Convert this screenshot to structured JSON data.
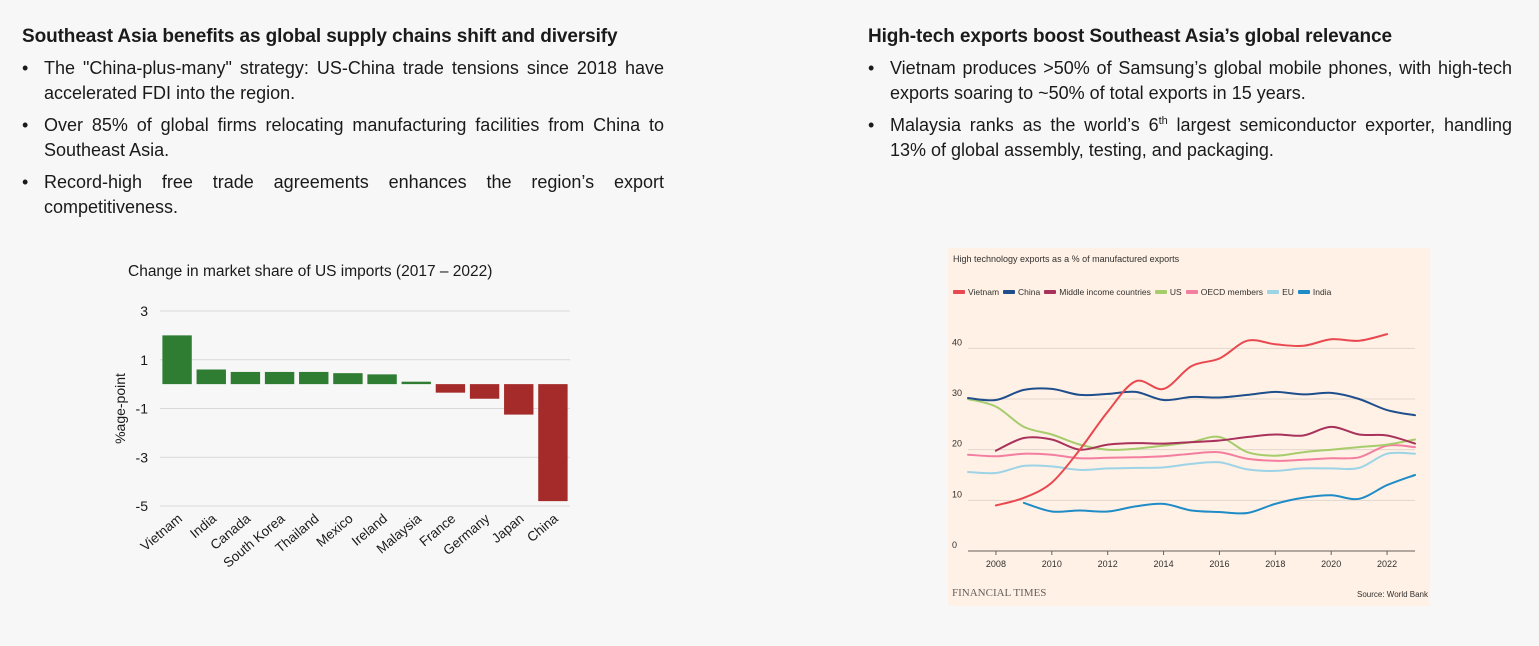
{
  "left": {
    "heading": "Southeast Asia benefits as global supply chains shift and diversify",
    "bullets": [
      "The \"China-plus-many\" strategy: US-China trade tensions since 2018 have accelerated FDI into the region.",
      "Over 85% of global firms relocating manufacturing facilities from China to Southeast Asia.",
      "Record-high free trade agreements enhances the region’s export competitiveness."
    ]
  },
  "right": {
    "heading": "High-tech exports boost Southeast Asia’s global relevance",
    "bullet1": "Vietnam produces >50% of Samsung’s global mobile phones, with high-tech exports soaring to ~50% of total exports in 15 years.",
    "bullet2_pre": "Malaysia ranks as the world’s 6",
    "bullet2_sup": "th",
    "bullet2_post": " largest semiconductor exporter, handling 13% of global assembly, testing, and packaging."
  },
  "bullet_glyph": "•",
  "chart_data": [
    {
      "type": "bar",
      "title": "Change in market share of US imports  (2017 – 2022)",
      "ylabel": "%age-point",
      "categories": [
        "Vietnam",
        "India",
        "Canada",
        "South Korea",
        "Thailand",
        "Mexico",
        "Ireland",
        "Malaysia",
        "France",
        "Germany",
        "Japan",
        "China"
      ],
      "values": [
        2.0,
        0.6,
        0.5,
        0.5,
        0.5,
        0.45,
        0.4,
        0.1,
        -0.35,
        -0.6,
        -1.25,
        -4.8
      ],
      "yticks": [
        3,
        1,
        -1,
        -3,
        -5
      ],
      "ylim": [
        -5,
        3
      ],
      "colors": {
        "positive": "#2e7d32",
        "negative": "#a52a2a"
      },
      "grid": true
    },
    {
      "type": "line",
      "title": "High technology exports as a % of manufactured exports",
      "brand": "FINANCIAL TIMES",
      "source": "Source: World Bank",
      "xticks": [
        2008,
        2010,
        2012,
        2014,
        2016,
        2018,
        2020,
        2022
      ],
      "yticks": [
        0,
        10,
        20,
        30,
        40
      ],
      "xlim": [
        2007,
        2023
      ],
      "ylim": [
        0,
        45
      ],
      "grid": true,
      "series": [
        {
          "name": "Vietnam",
          "color": "#e8484f",
          "x": [
            2008,
            2009,
            2010,
            2011,
            2012,
            2013,
            2014,
            2015,
            2016,
            2017,
            2018,
            2019,
            2020,
            2021,
            2022
          ],
          "y": [
            9,
            10.5,
            13.5,
            20,
            27.5,
            33.5,
            32,
            36.5,
            38,
            41.5,
            40.8,
            40.5,
            41.8,
            41.5,
            42.8
          ]
        },
        {
          "name": "China",
          "color": "#1f4e8c",
          "x": [
            2007,
            2008,
            2009,
            2010,
            2011,
            2012,
            2013,
            2014,
            2015,
            2016,
            2017,
            2018,
            2019,
            2020,
            2021,
            2022,
            2023
          ],
          "y": [
            30.2,
            29.8,
            31.8,
            32,
            30.8,
            31,
            31.4,
            29.8,
            30.4,
            30.3,
            30.8,
            31.4,
            30.9,
            31.2,
            30,
            27.8,
            26.8
          ]
        },
        {
          "name": "Middle income countries",
          "color": "#a8325b",
          "x": [
            2008,
            2009,
            2010,
            2011,
            2012,
            2013,
            2014,
            2015,
            2016,
            2017,
            2018,
            2019,
            2020,
            2021,
            2022,
            2023
          ],
          "y": [
            19.8,
            22.3,
            22,
            20,
            21,
            21.3,
            21.2,
            21.5,
            21.8,
            22.5,
            23,
            22.8,
            24.5,
            23,
            22.8,
            21.2
          ]
        },
        {
          "name": "US",
          "color": "#a6cc6b",
          "x": [
            2007,
            2008,
            2009,
            2010,
            2011,
            2012,
            2013,
            2014,
            2015,
            2016,
            2017,
            2018,
            2019,
            2020,
            2021,
            2022,
            2023
          ],
          "y": [
            30,
            28.5,
            24.5,
            23,
            21,
            20,
            20.2,
            20.8,
            21.5,
            22.5,
            19.5,
            18.8,
            19.5,
            20,
            20.5,
            21,
            22
          ]
        },
        {
          "name": "OECD members",
          "color": "#f47ea0",
          "x": [
            2007,
            2008,
            2009,
            2010,
            2011,
            2012,
            2013,
            2014,
            2015,
            2016,
            2017,
            2018,
            2019,
            2020,
            2021,
            2022,
            2023
          ],
          "y": [
            19,
            18.7,
            19.2,
            19,
            18.3,
            18.4,
            18.5,
            18.7,
            19.2,
            19.5,
            18.2,
            17.8,
            18,
            18.3,
            18.5,
            20.8,
            20.5
          ]
        },
        {
          "name": "EU",
          "color": "#9dd3e6",
          "x": [
            2007,
            2008,
            2009,
            2010,
            2011,
            2012,
            2013,
            2014,
            2015,
            2016,
            2017,
            2018,
            2019,
            2020,
            2021,
            2022,
            2023
          ],
          "y": [
            15.6,
            15.4,
            16.8,
            16.7,
            16,
            16.3,
            16.4,
            16.5,
            17.2,
            17.5,
            16.1,
            15.8,
            16.3,
            16.3,
            16.4,
            19.2,
            19.2
          ]
        },
        {
          "name": "India",
          "color": "#1f8cc7",
          "x": [
            2009,
            2010,
            2011,
            2012,
            2013,
            2014,
            2015,
            2016,
            2017,
            2018,
            2019,
            2020,
            2021,
            2022,
            2023
          ],
          "y": [
            9.5,
            7.8,
            8,
            7.8,
            8.8,
            9.3,
            8,
            7.7,
            7.5,
            9.3,
            10.5,
            11,
            10.3,
            13,
            15
          ]
        }
      ]
    }
  ]
}
